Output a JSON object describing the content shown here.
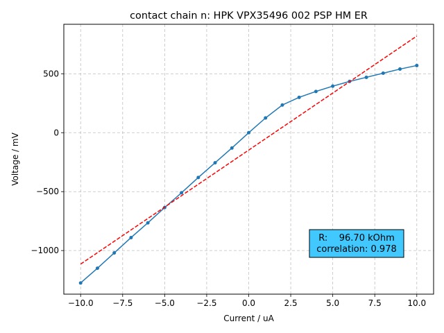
{
  "chart_data": {
    "type": "line",
    "title": "contact chain n: HPK VPX35496 002 PSP HM ER",
    "xlabel": "Current / uA",
    "ylabel": "Voltage / mV",
    "xlim": [
      -11,
      11
    ],
    "ylim": [
      -1370,
      920
    ],
    "xticks": [
      -10.0,
      -7.5,
      -5.0,
      -2.5,
      0.0,
      2.5,
      5.0,
      7.5,
      10.0
    ],
    "xtick_labels": [
      "−10.0",
      "−7.5",
      "−5.0",
      "−2.5",
      "0.0",
      "2.5",
      "5.0",
      "7.5",
      "10.0"
    ],
    "yticks": [
      -1000,
      -500,
      0,
      500
    ],
    "ytick_labels": [
      "−1000",
      "−500",
      "0",
      "500"
    ],
    "grid": true,
    "series": [
      {
        "style": "solid-with-markers",
        "color": "#1f77b4",
        "x": [
          -10,
          -9,
          -8,
          -7,
          -6,
          -5,
          -4,
          -3,
          -2,
          -1,
          0,
          1,
          2,
          3,
          4,
          5,
          6,
          7,
          8,
          9,
          10
        ],
        "y": [
          -1275,
          -1150,
          -1020,
          -890,
          -765,
          -635,
          -510,
          -380,
          -255,
          -130,
          0,
          125,
          235,
          300,
          350,
          395,
          435,
          470,
          505,
          540,
          570
        ]
      },
      {
        "style": "dashed",
        "color": "#ff0000",
        "x": [
          -10,
          10
        ],
        "y": [
          -1115,
          820
        ]
      }
    ],
    "annotation": {
      "line1": "R:    96.70 kOhm",
      "line2": "correlation: 0.978",
      "background": "#40c8ff",
      "placement": "lower-right"
    }
  }
}
